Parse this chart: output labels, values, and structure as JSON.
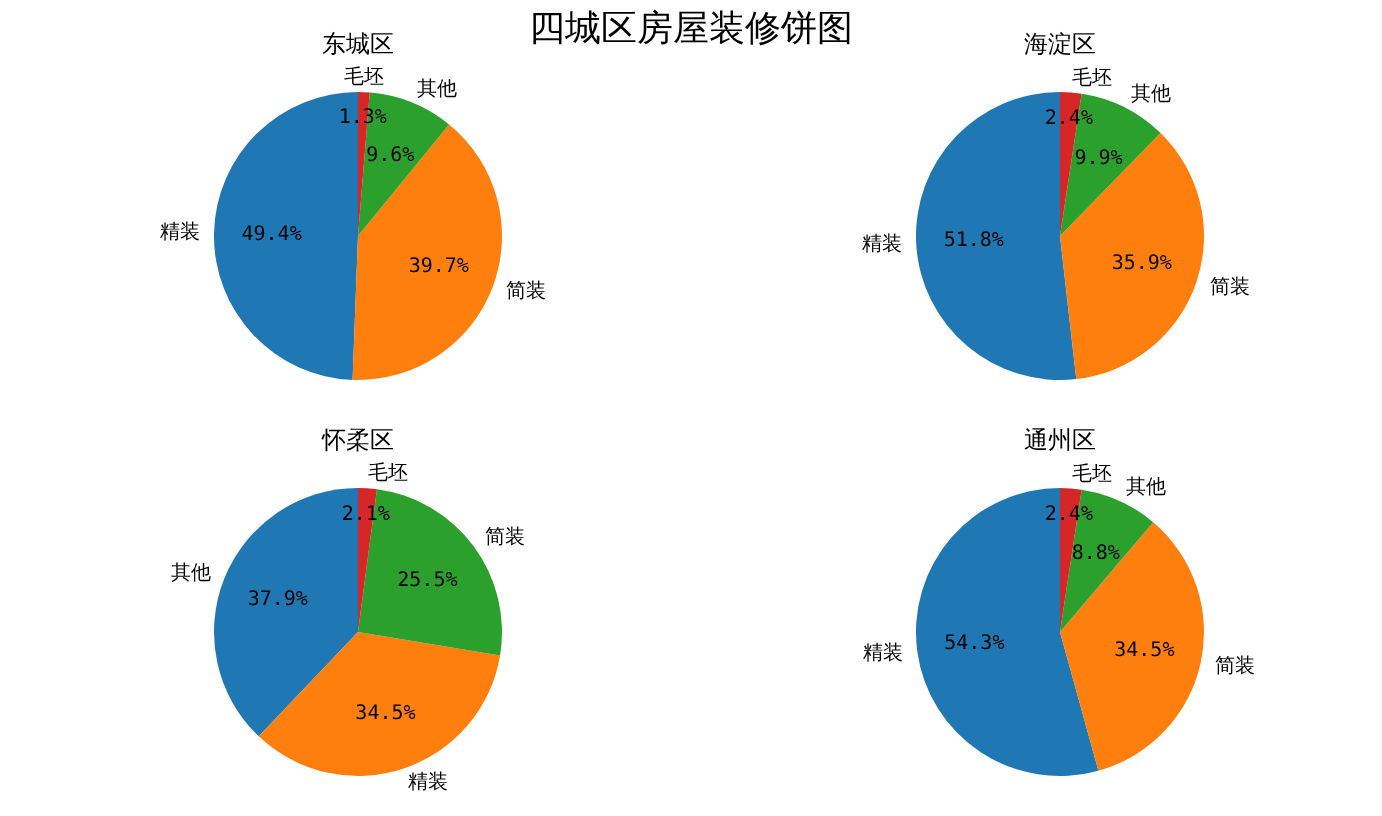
{
  "chart_data": [
    {
      "type": "pie",
      "title": "四城区房屋装修饼图",
      "subtitle": "东城区",
      "categories": [
        "精装",
        "简装",
        "其他",
        "毛坯"
      ],
      "values": [
        49.4,
        39.7,
        9.6,
        1.3
      ],
      "value_labels": [
        "49.4%",
        "39.7%",
        "9.6%",
        "1.3%"
      ],
      "colors": [
        "#1f77b4",
        "#ff7f0e",
        "#2ca02c",
        "#d62728"
      ]
    },
    {
      "type": "pie",
      "title": "海淀区",
      "categories": [
        "精装",
        "简装",
        "其他",
        "毛坯"
      ],
      "values": [
        51.8,
        35.9,
        9.9,
        2.4
      ],
      "value_labels": [
        "51.8%",
        "35.9%",
        "9.9%",
        "2.4%"
      ],
      "colors": [
        "#1f77b4",
        "#ff7f0e",
        "#2ca02c",
        "#d62728"
      ]
    },
    {
      "type": "pie",
      "title": "怀柔区",
      "categories": [
        "其他",
        "精装",
        "简装",
        "毛坯"
      ],
      "values": [
        37.9,
        34.5,
        25.5,
        2.1
      ],
      "value_labels": [
        "37.9%",
        "34.5%",
        "25.5%",
        "2.1%"
      ],
      "colors": [
        "#1f77b4",
        "#ff7f0e",
        "#2ca02c",
        "#d62728"
      ]
    },
    {
      "type": "pie",
      "title": "通州区",
      "categories": [
        "精装",
        "简装",
        "其他",
        "毛坯"
      ],
      "values": [
        54.3,
        34.5,
        8.8,
        2.4
      ],
      "value_labels": [
        "54.3%",
        "34.5%",
        "8.8%",
        "2.4%"
      ],
      "colors": [
        "#1f77b4",
        "#ff7f0e",
        "#2ca02c",
        "#d62728"
      ]
    }
  ]
}
